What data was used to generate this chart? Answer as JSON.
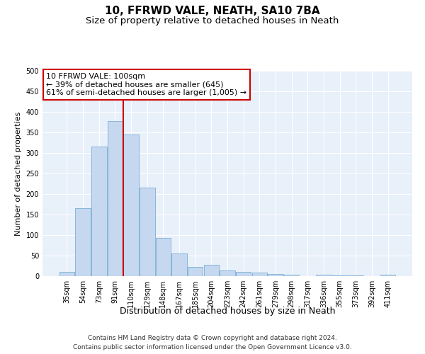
{
  "title1": "10, FFRWD VALE, NEATH, SA10 7BA",
  "title2": "Size of property relative to detached houses in Neath",
  "xlabel": "Distribution of detached houses by size in Neath",
  "ylabel": "Number of detached properties",
  "bar_labels": [
    "35sqm",
    "54sqm",
    "73sqm",
    "91sqm",
    "110sqm",
    "129sqm",
    "148sqm",
    "167sqm",
    "185sqm",
    "204sqm",
    "223sqm",
    "242sqm",
    "261sqm",
    "279sqm",
    "298sqm",
    "317sqm",
    "336sqm",
    "355sqm",
    "373sqm",
    "392sqm",
    "411sqm"
  ],
  "bar_values": [
    10,
    165,
    315,
    378,
    345,
    215,
    93,
    55,
    23,
    27,
    13,
    10,
    8,
    5,
    3,
    0,
    3,
    1,
    1,
    0,
    3
  ],
  "bar_color": "#c5d8f0",
  "bar_edge_color": "#7aaed4",
  "vline_x": 3.5,
  "vline_color": "#cc0000",
  "annotation_text": "10 FFRWD VALE: 100sqm\n← 39% of detached houses are smaller (645)\n61% of semi-detached houses are larger (1,005) →",
  "annotation_box_color": "#ffffff",
  "annotation_box_edge": "#cc0000",
  "ylim": [
    0,
    500
  ],
  "yticks": [
    0,
    50,
    100,
    150,
    200,
    250,
    300,
    350,
    400,
    450,
    500
  ],
  "footer1": "Contains HM Land Registry data © Crown copyright and database right 2024.",
  "footer2": "Contains public sector information licensed under the Open Government Licence v3.0.",
  "plot_bg_color": "#e8f0fa",
  "title1_fontsize": 11,
  "title2_fontsize": 9.5,
  "xlabel_fontsize": 9,
  "ylabel_fontsize": 8,
  "tick_fontsize": 7,
  "annotation_fontsize": 8,
  "footer_fontsize": 6.5
}
